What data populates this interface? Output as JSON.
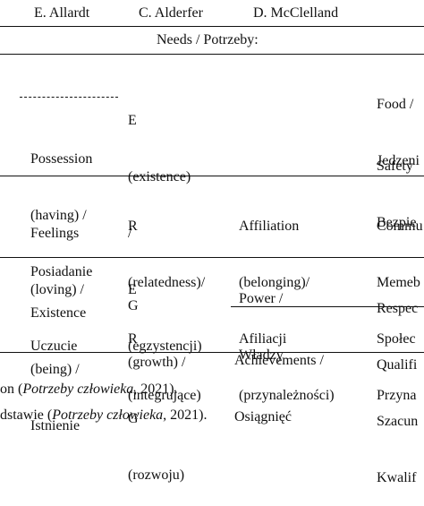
{
  "header": {
    "col_allardt": "E. Allardt",
    "col_alderfer": "C. Alderfer",
    "col_mcclelland": "D. McClelland"
  },
  "needs_row": "Needs / Potrzeby:",
  "rows": {
    "possession": {
      "allardt": [
        "Possession",
        "(having) /",
        "Posiadanie"
      ],
      "alderfer": [
        "E",
        "(existence)",
        "/",
        "E",
        "(egzystencji)"
      ],
      "last_col_top": [
        "Food /",
        "Jedzeni"
      ],
      "last_col_bottom": [
        "Safety",
        "Bezpie"
      ]
    },
    "feelings": {
      "allardt": [
        "Feelings",
        "(loving) /",
        "Uczucie"
      ],
      "alderfer": [
        "R",
        "(relatedness)/",
        "R",
        "(integrujące)"
      ],
      "mcclelland": [
        "Affiliation",
        "(belonging)/",
        "Afiliacji",
        "(przynależności)"
      ],
      "last_col": [
        "Commu",
        "Memeb",
        "Społec",
        "Przyna"
      ]
    },
    "existence": {
      "allardt": [
        "Existence",
        "(being) /",
        "Istnienie"
      ],
      "alderfer": [
        "G",
        "(growth) /",
        "G",
        "(rozwoju)"
      ],
      "mcclelland_top": [
        "Power /",
        "Władzy"
      ],
      "mcclelland_bottom": [
        "Achievements /",
        "Osiągnięć"
      ],
      "last_col": [
        "Respec",
        "Qualifi",
        "Szacun",
        "Kwalif"
      ]
    }
  },
  "footer": {
    "line1_prefix": "on (",
    "line1_italic": "Potrzeby człowieka",
    "line1_suffix": ", 2021).",
    "line2_prefix": "dstawie (",
    "line2_italic": "Potrzeby człowieka",
    "line2_suffix": ", 2021)."
  }
}
